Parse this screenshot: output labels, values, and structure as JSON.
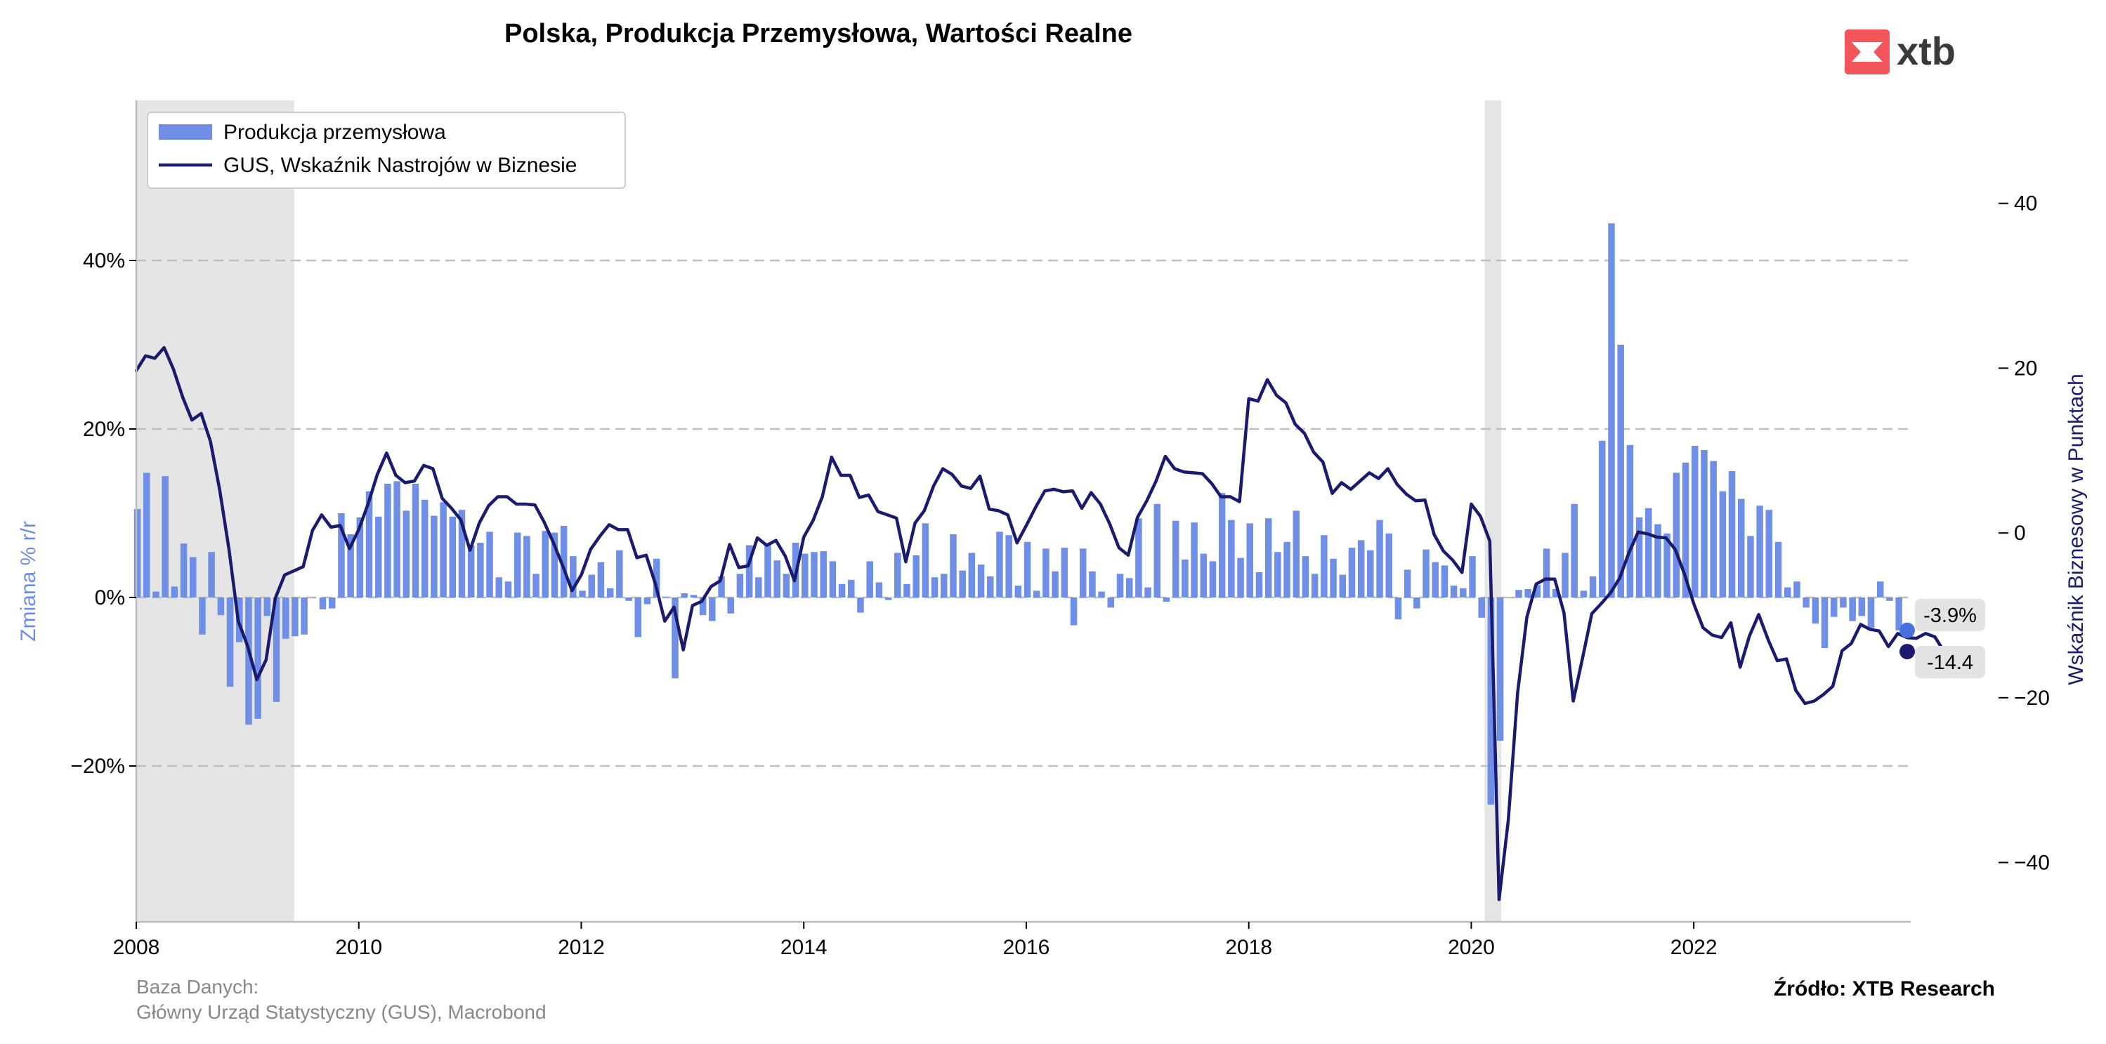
{
  "chart_data": {
    "type": "bar+line",
    "title": "Polska, Produkcja Przemysłowa, Wartości Realne",
    "y_left": {
      "label": "Zmiana % r/r",
      "range": [
        -38.5,
        59
      ],
      "ticks": [
        -20,
        0,
        20,
        40
      ],
      "tick_labels": [
        "−20%",
        "0%",
        "20%",
        "40%"
      ]
    },
    "y_right": {
      "label": "Wskaźnik Biznesowy w Punktach",
      "range": [
        -47.2,
        52.5
      ],
      "ticks": [
        -40,
        -20,
        0,
        20,
        40
      ],
      "tick_labels": [
        "−40",
        "−20",
        "0",
        "20",
        "40"
      ]
    },
    "x_axis": {
      "range": [
        2008.0,
        2023.95
      ],
      "ticks": [
        2008,
        2010,
        2012,
        2014,
        2016,
        2018,
        2020,
        2022
      ],
      "tick_labels": [
        "2008",
        "2010",
        "2012",
        "2014",
        "2016",
        "2018",
        "2020",
        "2022"
      ]
    },
    "grid": "horizontal-dashed",
    "legend": {
      "placement": "top-left",
      "entries": [
        "Produkcja przemysłowa",
        "GUS, Wskaźnik Nastrojów w Biznesie"
      ]
    },
    "shaded_periods": [
      [
        2008.0,
        2009.42
      ],
      [
        2020.12,
        2020.27
      ]
    ],
    "colors": {
      "bars": "#6f8fe6",
      "line": "#1a1a6e",
      "shade": "#e5e5e5",
      "grid": "#c0c0c0",
      "logo": "#f2555a"
    },
    "series": [
      {
        "name": "Produkcja przemysłowa",
        "kind": "bar",
        "start": "2008-01",
        "values": [
          10.5,
          14.8,
          0.7,
          14.4,
          1.3,
          6.4,
          4.8,
          -4.4,
          5.4,
          -2.1,
          -10.6,
          -5.3,
          -15.1,
          -14.4,
          -2.2,
          -12.4,
          -4.9,
          -4.6,
          -4.4,
          0.0,
          -1.4,
          -1.3,
          10.0,
          7.5,
          9.5,
          12.6,
          9.6,
          13.5,
          13.8,
          10.3,
          13.5,
          11.6,
          9.7,
          11.3,
          9.6,
          10.4,
          6.2,
          6.5,
          7.8,
          2.4,
          1.9,
          7.7,
          7.3,
          2.8,
          7.9,
          7.7,
          8.5,
          4.9,
          0.8,
          2.7,
          4.2,
          1.1,
          5.6,
          -0.4,
          -4.7,
          -0.8,
          4.6,
          0.1,
          -9.6,
          0.5,
          0.3,
          -2.1,
          -2.8,
          2.5,
          -1.9,
          2.8,
          6.2,
          2.4,
          6.2,
          4.4,
          2.8,
          6.5,
          5.2,
          5.4,
          5.5,
          4.3,
          1.6,
          2.1,
          -1.8,
          4.3,
          1.8,
          -0.3,
          5.3,
          1.6,
          5.0,
          8.8,
          2.4,
          2.8,
          7.5,
          3.2,
          5.3,
          3.9,
          2.5,
          7.8,
          7.4,
          1.4,
          6.6,
          0.8,
          5.8,
          3.1,
          5.9,
          -3.3,
          5.8,
          3.1,
          0.7,
          -1.2,
          2.8,
          2.3,
          9.4,
          1.2,
          11.1,
          -0.5,
          9.1,
          4.5,
          8.9,
          5.2,
          4.3,
          12.4,
          9.2,
          4.7,
          8.8,
          3.0,
          9.4,
          5.4,
          6.6,
          10.3,
          4.9,
          2.8,
          7.4,
          4.6,
          2.7,
          5.9,
          6.8,
          5.6,
          9.2,
          7.6,
          -2.6,
          3.3,
          -1.3,
          5.7,
          4.2,
          3.8,
          1.4,
          1.1,
          4.9,
          -2.4,
          -24.6,
          -17.0,
          -0.1,
          0.9,
          1.0,
          1.5,
          5.8,
          1.0,
          5.3,
          11.1,
          0.8,
          2.5,
          18.6,
          44.4,
          30.0,
          18.1,
          9.5,
          10.6,
          8.7,
          7.6,
          14.8,
          16.0,
          18.0,
          17.5,
          16.2,
          12.6,
          15.0,
          11.7,
          7.3,
          10.9,
          10.4,
          6.6,
          1.2,
          1.9,
          -1.2,
          -3.1,
          -6.0,
          -2.3,
          -1.2,
          -2.8,
          -2.2,
          -3.6,
          1.9,
          -0.4,
          -3.9
        ]
      },
      {
        "name": "GUS, Wskaźnik Nastrojów w Biznesie",
        "kind": "line",
        "start": "2008-01",
        "values": [
          19.7,
          21.5,
          21.2,
          22.5,
          19.9,
          16.5,
          13.7,
          14.5,
          11.1,
          5.2,
          -2.0,
          -10.7,
          -13.7,
          -17.8,
          -15.4,
          -7.9,
          -5.1,
          -4.6,
          -4.1,
          0.3,
          2.2,
          0.7,
          0.9,
          -1.9,
          0.4,
          3.5,
          7.1,
          9.7,
          7.0,
          6.1,
          6.3,
          8.2,
          7.8,
          4.2,
          3.0,
          1.6,
          -2.1,
          1.2,
          3.3,
          4.4,
          4.4,
          3.5,
          3.5,
          3.4,
          1.3,
          -1.2,
          -4.0,
          -7.0,
          -5.1,
          -2.0,
          -0.4,
          1.0,
          0.4,
          0.4,
          -3.0,
          -2.7,
          -6.2,
          -10.7,
          -9.0,
          -14.2,
          -8.8,
          -8.3,
          -6.5,
          -5.8,
          -1.4,
          -4.2,
          -4.0,
          -0.6,
          -1.5,
          -0.9,
          -2.8,
          -5.8,
          -0.5,
          1.5,
          4.4,
          9.2,
          7.0,
          7.0,
          4.3,
          4.6,
          2.6,
          2.2,
          1.8,
          -3.5,
          1.2,
          2.7,
          5.7,
          7.8,
          7.1,
          5.7,
          5.4,
          6.9,
          2.9,
          2.7,
          2.2,
          -1.2,
          0.9,
          3.1,
          5.1,
          5.3,
          5.0,
          5.1,
          3.0,
          4.9,
          3.5,
          1.1,
          -1.8,
          -2.7,
          1.9,
          3.9,
          6.3,
          9.3,
          7.8,
          7.4,
          7.3,
          7.2,
          6.0,
          4.4,
          4.4,
          3.8,
          16.3,
          16.0,
          18.6,
          16.7,
          15.8,
          13.2,
          12.1,
          9.8,
          8.6,
          4.8,
          6.1,
          5.3,
          6.3,
          7.3,
          6.6,
          7.8,
          5.9,
          4.7,
          3.9,
          4.0,
          -0.2,
          -2.2,
          -3.3,
          -4.8,
          3.5,
          2.0,
          -1.0,
          -44.5,
          -34.8,
          -19.4,
          -10.2,
          -6.2,
          -5.6,
          -5.6,
          -9.7,
          -20.4,
          -15.2,
          -9.8,
          -8.6,
          -7.3,
          -5.5,
          -2.4,
          0.1,
          -0.1,
          -0.5,
          -0.6,
          -2.0,
          -5.0,
          -8.6,
          -11.5,
          -12.4,
          -12.7,
          -10.9,
          -16.3,
          -12.5,
          -9.9,
          -12.9,
          -15.5,
          -15.3,
          -19.1,
          -20.7,
          -20.4,
          -19.6,
          -18.6,
          -14.3,
          -13.4,
          -11.1,
          -11.7,
          -11.9,
          -13.8,
          -12.2,
          -12.7,
          -12.8,
          -12.2,
          -12.6,
          -14.4
        ]
      }
    ],
    "last_values": {
      "bars": "-3.9%",
      "line": "-14.4"
    }
  },
  "source_left": {
    "line1": "Baza Danych:",
    "line2": "Główny Urząd Statystyczny (GUS), Macrobond"
  },
  "source_right": "Źródło: XTB Research",
  "logo": {
    "text": "xtb"
  }
}
